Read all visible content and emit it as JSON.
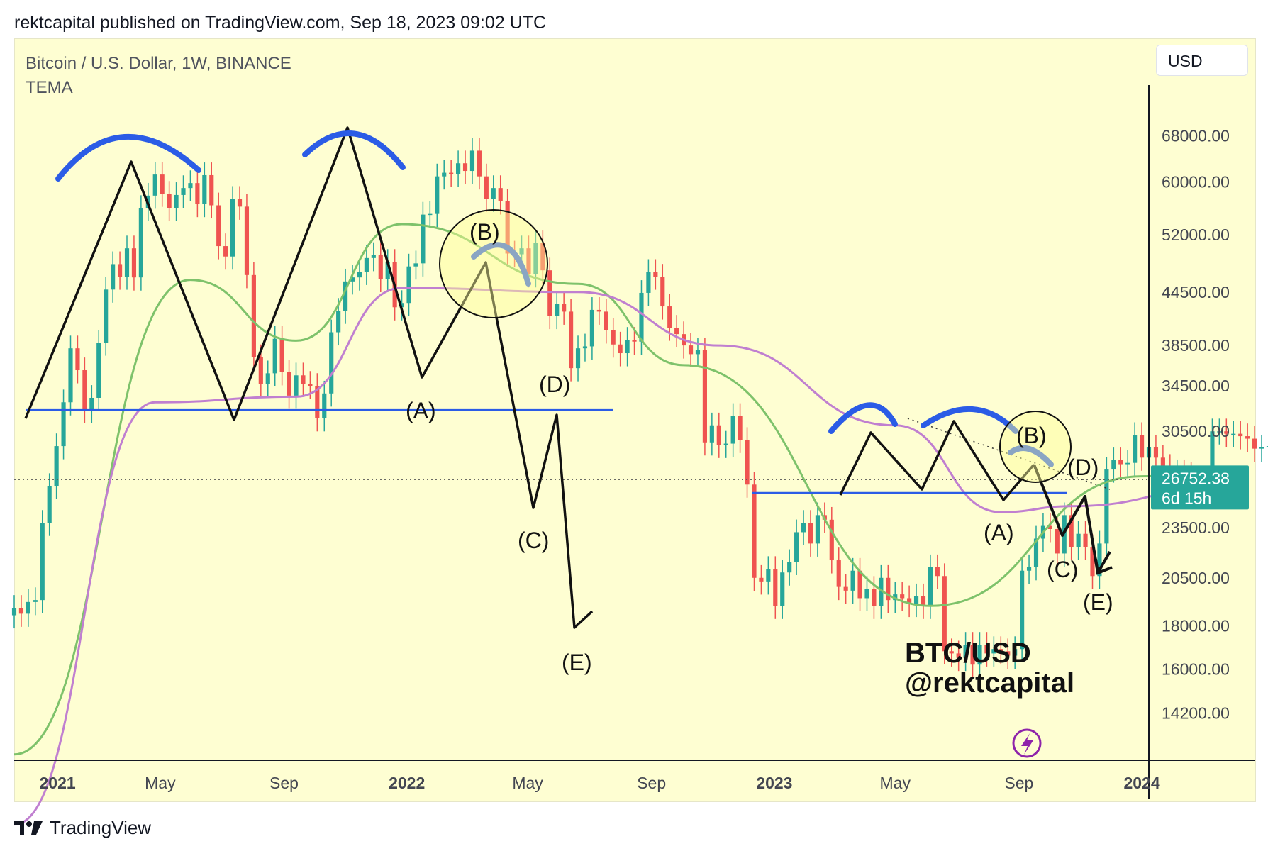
{
  "header": {
    "published_line": "rektcapital published on TradingView.com, Sep 18, 2023 09:02 UTC"
  },
  "chart_header": {
    "symbol": "Bitcoin / U.S. Dollar, 1W, BINANCE",
    "indicator": "TEMA",
    "currency": "USD"
  },
  "price_badge": {
    "price": "26752.38",
    "countdown": "6d 15h",
    "color": "#26a69a"
  },
  "footer": {
    "brand": "TradingView"
  },
  "colors": {
    "up": "#26a69a",
    "down": "#ef5350",
    "green_ma": "#7ec26b",
    "purple_ma": "#c07fd0",
    "blue": "#2b5ce6",
    "pattern": "#111111",
    "background": "#fefed2"
  },
  "chart_data": {
    "type": "candlestick",
    "symbol": "BTC/USD",
    "interval": "1W",
    "exchange": "BINANCE",
    "y_axis": {
      "scale": "log",
      "ticks": [
        68000,
        60000,
        52000,
        44500,
        38500,
        34500,
        30500,
        23500,
        20500,
        18000,
        16000,
        14200
      ],
      "tick_labels": [
        "68000.00",
        "60000.00",
        "52000.00",
        "44500.00",
        "38500.00",
        "34500.00",
        "30500.00",
        "23500.00",
        "20500.00",
        "18000.00",
        "16000.00",
        "14200.00"
      ],
      "range": [
        12500,
        78000
      ]
    },
    "x_axis": {
      "range": [
        "2020-12-07",
        "2024-01-08"
      ],
      "ticks": [
        {
          "date": "2021-01-01",
          "label": "2021",
          "bold": true
        },
        {
          "date": "2021-05-01",
          "label": "May",
          "bold": false
        },
        {
          "date": "2021-09-01",
          "label": "Sep",
          "bold": false
        },
        {
          "date": "2022-01-01",
          "label": "2022",
          "bold": true
        },
        {
          "date": "2022-05-01",
          "label": "May",
          "bold": false
        },
        {
          "date": "2022-09-01",
          "label": "Sep",
          "bold": false
        },
        {
          "date": "2023-01-01",
          "label": "2023",
          "bold": true
        },
        {
          "date": "2023-05-01",
          "label": "May",
          "bold": false
        },
        {
          "date": "2023-09-01",
          "label": "Sep",
          "bold": false
        },
        {
          "date": "2024-01-01",
          "label": "2024",
          "bold": true
        }
      ]
    },
    "candle_closes": [
      [
        18900,
        18600,
        19200,
        19300,
        23800,
        26300,
        29300,
        33000,
        38200,
        36000,
        32300,
        33400,
        38800,
        44800,
        48000,
        46400,
        50100,
        46300,
        55900,
        57800,
        61200,
        58100,
        55900,
        57900,
        59000,
        59800,
        56500,
        61100,
        56300,
        50400,
        49000,
        57300,
        56100,
        46600,
        37300,
        34700,
        35700,
        39200,
        35800,
        33600,
        35500,
        34700,
        34500,
        31600,
        33800,
        39900,
        42300,
        45800,
        46300,
        47000,
        48800,
        49200,
        46100,
        48300,
        42700,
        43200,
        47700,
        48100,
        54900,
        55000,
        60900,
        61500,
        61300,
        63100,
        61800,
        65300,
        60900,
        57300,
        59000,
        56900,
        49400,
        49300,
        50100,
        46700,
        50800,
        47200,
        41700,
        43100,
        42200,
        36200
      ],
      [
        38200,
        38400,
        42400,
        42200,
        40100,
        38600,
        37700,
        39100,
        38900,
        44400,
        47000,
        46400,
        42800,
        40400,
        39700,
        38500,
        37600,
        38000,
        29600,
        31000,
        29400,
        29500,
        31800,
        29800,
        26400,
        20500,
        20300,
        21000,
        19000,
        20800,
        21400,
        23200,
        23800,
        22500,
        24300,
        24000,
        21500,
        20000,
        19800,
        20900,
        19400,
        19900,
        19000,
        20500,
        19300,
        19600,
        19400,
        19100,
        19500,
        19000,
        21100,
        20600,
        16800,
        16700,
        16500,
        17100,
        16200,
        17100,
        16700,
        16900,
        16800
      ],
      [
        16600,
        16900,
        20900,
        21100,
        22800,
        23600,
        23400,
        21900,
        24300,
        22300,
        23100,
        22300,
        20600,
        22500,
        27500,
        28200,
        27900,
        28000,
        30200,
        28400,
        29200,
        28400,
        27700,
        26800,
        27300,
        27100,
        25800,
        25600,
        26400,
        30500,
        30500,
        30300,
        30300,
        30100,
        29900,
        29100,
        29200,
        29300,
        29200,
        26100,
        26100,
        26000,
        25800,
        26200,
        25800,
        26500,
        26752
      ]
    ],
    "moving_averages": [
      {
        "name": "green",
        "points": [
          [
            0,
            12700
          ],
          [
            25,
            46000
          ],
          [
            40,
            39000
          ],
          [
            55,
            53500
          ],
          [
            80,
            45500
          ],
          [
            95,
            36500
          ],
          [
            130,
            19000
          ],
          [
            160,
            27000
          ],
          [
            172,
            27500
          ]
        ]
      },
      {
        "name": "purple",
        "points": [
          [
            0,
            10500
          ],
          [
            20,
            33000
          ],
          [
            40,
            33500
          ],
          [
            55,
            45000
          ],
          [
            80,
            44500
          ],
          [
            100,
            38500
          ],
          [
            125,
            31000
          ],
          [
            140,
            24500
          ],
          [
            150,
            24900
          ],
          [
            172,
            26200
          ]
        ]
      }
    ],
    "annotations": {
      "text_labels": [
        "(B)",
        "(A)",
        "(D)",
        "(C)",
        "(E)",
        "(B)",
        "(D)",
        "(A)",
        "(C)",
        "(E)"
      ],
      "horizontal_levels": [
        32300,
        25800
      ],
      "zigzag_2022": [
        [
          36000,
          60000
        ],
        [
          29000,
          66000
        ],
        [
          35000,
          48000
        ],
        [
          25000,
          32500
        ],
        [
          19000,
          21500
        ]
      ],
      "projected_path": [
        [
          25800,
          28400,
          23500,
          26000,
          21200
        ]
      ]
    },
    "watermark": [
      "BTC/USD",
      "@rektcapital"
    ],
    "last_price": 26752.38
  }
}
